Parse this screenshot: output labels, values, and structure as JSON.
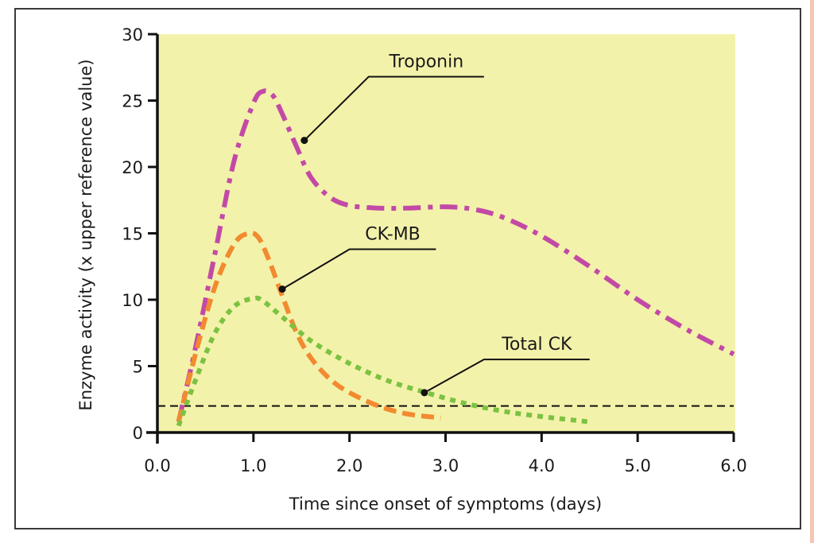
{
  "chart_data": {
    "type": "line",
    "title": "",
    "xlabel": "Time since onset of symptoms (days)",
    "ylabel": "Enzyme activity (x upper reference value)",
    "xlim": [
      0,
      6
    ],
    "ylim": [
      0,
      30
    ],
    "xticks": [
      "0.0",
      "1.0",
      "2.0",
      "3.0",
      "4.0",
      "5.0",
      "6.0"
    ],
    "xtick_values": [
      0,
      1,
      2,
      3,
      4,
      5,
      6
    ],
    "yticks": [
      "0",
      "5",
      "10",
      "15",
      "20",
      "25",
      "30"
    ],
    "ytick_values": [
      0,
      5,
      10,
      15,
      20,
      25,
      30
    ],
    "grid": false,
    "plot_background": "#f3f2aa",
    "reference_line": {
      "y": 2,
      "style": "dashed",
      "color": "#111111"
    },
    "series": [
      {
        "name": "Troponin",
        "color": "#c24aa6",
        "style": "dash-dot",
        "x": [
          0.22,
          0.4,
          0.6,
          0.8,
          1.0,
          1.1,
          1.2,
          1.3,
          1.45,
          1.6,
          1.8,
          2.0,
          2.3,
          2.6,
          3.0,
          3.3,
          3.6,
          4.0,
          4.5,
          5.0,
          5.5,
          6.0
        ],
        "y": [
          0.8,
          6.5,
          13.5,
          20.5,
          24.8,
          25.7,
          25.4,
          24.0,
          21.5,
          19.2,
          17.7,
          17.1,
          16.9,
          16.9,
          17.0,
          16.8,
          16.2,
          14.8,
          12.5,
          10.0,
          7.8,
          5.9
        ]
      },
      {
        "name": "CK-MB",
        "color": "#f28a30",
        "style": "dashed",
        "x": [
          0.22,
          0.4,
          0.6,
          0.8,
          0.95,
          1.05,
          1.15,
          1.3,
          1.45,
          1.6,
          1.8,
          2.0,
          2.3,
          2.6,
          2.95
        ],
        "y": [
          0.8,
          6.0,
          11.0,
          14.2,
          15.0,
          14.7,
          13.2,
          10.3,
          7.5,
          5.6,
          4.0,
          3.0,
          2.0,
          1.4,
          1.1
        ]
      },
      {
        "name": "Total CK",
        "color": "#7cc242",
        "style": "dotted",
        "x": [
          0.22,
          0.4,
          0.6,
          0.8,
          1.0,
          1.1,
          1.3,
          1.6,
          2.0,
          2.4,
          2.8,
          3.2,
          3.6,
          4.0,
          4.5
        ],
        "y": [
          0.5,
          4.0,
          7.5,
          9.5,
          10.1,
          9.9,
          8.7,
          6.9,
          5.2,
          3.9,
          3.0,
          2.2,
          1.6,
          1.2,
          0.8
        ]
      }
    ],
    "annotations": [
      {
        "text": "Troponin",
        "series": "Troponin",
        "point": [
          1.53,
          22.0
        ],
        "elbow": [
          2.2,
          26.8
        ],
        "end": [
          3.4,
          26.8
        ]
      },
      {
        "text": "CK-MB",
        "series": "CK-MB",
        "point": [
          1.3,
          10.8
        ],
        "elbow": [
          2.0,
          13.8
        ],
        "end": [
          2.9,
          13.8
        ]
      },
      {
        "text": "Total CK",
        "series": "Total CK",
        "point": [
          2.78,
          3.0
        ],
        "elbow": [
          3.4,
          5.5
        ],
        "end": [
          4.5,
          5.5
        ]
      }
    ]
  }
}
